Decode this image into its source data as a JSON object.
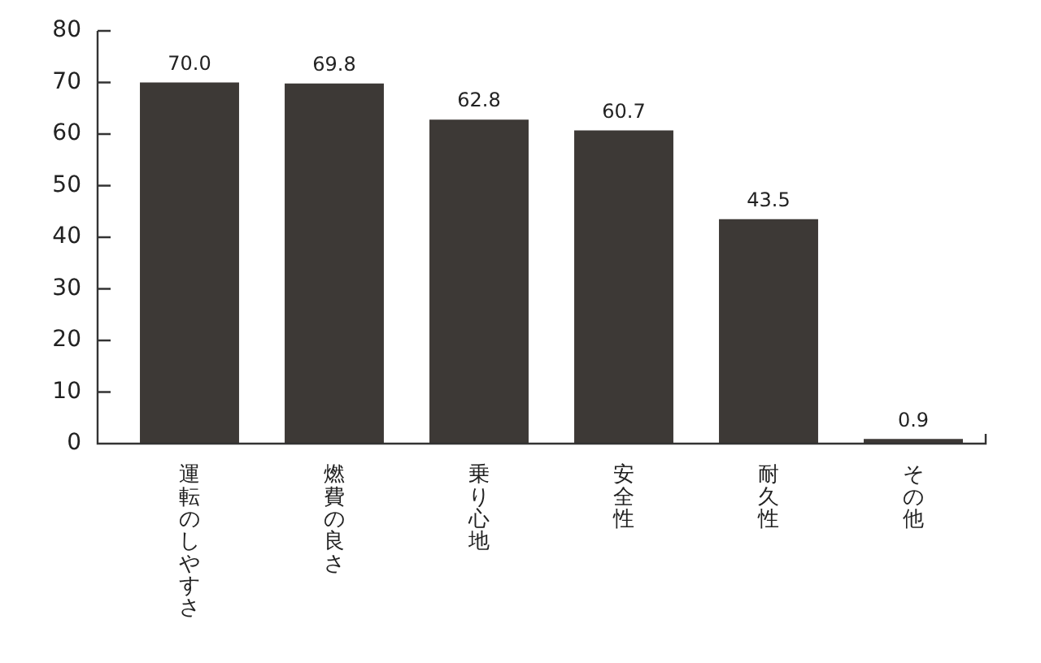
{
  "chart_data": {
    "type": "bar",
    "categories": [
      "運転のしやすさ",
      "燃費の良さ",
      "乗り心地",
      "安全性",
      "耐久性",
      "その他"
    ],
    "values": [
      70.0,
      69.8,
      62.8,
      60.7,
      43.5,
      0.9
    ],
    "value_labels": [
      "70.0",
      "69.8",
      "62.8",
      "60.7",
      "43.5",
      "0.9"
    ],
    "color": "#3d3936",
    "ylim": [
      0,
      80
    ],
    "yticks": [
      0,
      10,
      20,
      30,
      40,
      50,
      60,
      70,
      80
    ],
    "grid": false
  }
}
